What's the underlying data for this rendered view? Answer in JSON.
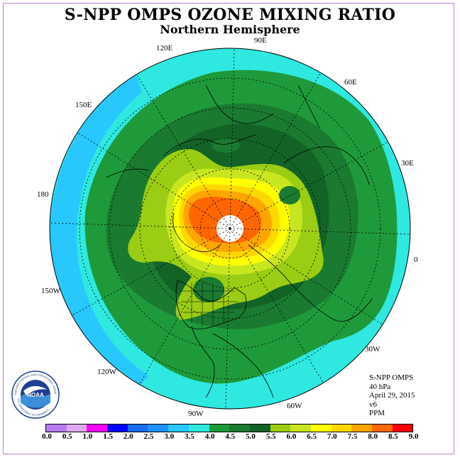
{
  "header": {
    "title": "S-NPP OMPS OZONE MIXING RATIO",
    "subtitle": "Northern Hemisphere"
  },
  "longitude_labels": [
    "120E",
    "90E",
    "60E",
    "150E",
    "30E",
    "180",
    "0",
    "150W",
    "30W",
    "120W",
    "60W",
    "90W"
  ],
  "info": {
    "instrument": "S-NPP OMPS",
    "level": "40 hPa",
    "date": "April 29, 2015",
    "version": "v6",
    "units": "PPM"
  },
  "logo": {
    "text": "NOAA",
    "ring_text": "NATIONAL OCEANIC AND ATMOSPHERIC ADMINISTRATION",
    "ring_text_bottom": "U.S. DEPARTMENT OF COMMERCE"
  },
  "colorbar": {
    "ticks": [
      "0.0",
      "0.5",
      "1.0",
      "1.5",
      "2.0",
      "2.5",
      "3.0",
      "3.5",
      "4.0",
      "4.5",
      "5.0",
      "5.5",
      "6.0",
      "6.5",
      "7.0",
      "7.5",
      "8.0",
      "8.5",
      "9.0"
    ],
    "colors": [
      "#b77af0",
      "#e0a8f0",
      "#ff00ff",
      "#0000ff",
      "#1a6cf0",
      "#1e90ff",
      "#28c8ff",
      "#2fe8e0",
      "#1f9a3a",
      "#1a7a30",
      "#136327",
      "#9acd14",
      "#c8e620",
      "#ffff00",
      "#ffd700",
      "#ffa500",
      "#ff6600",
      "#ff0000",
      "#8b5a2b"
    ]
  }
}
